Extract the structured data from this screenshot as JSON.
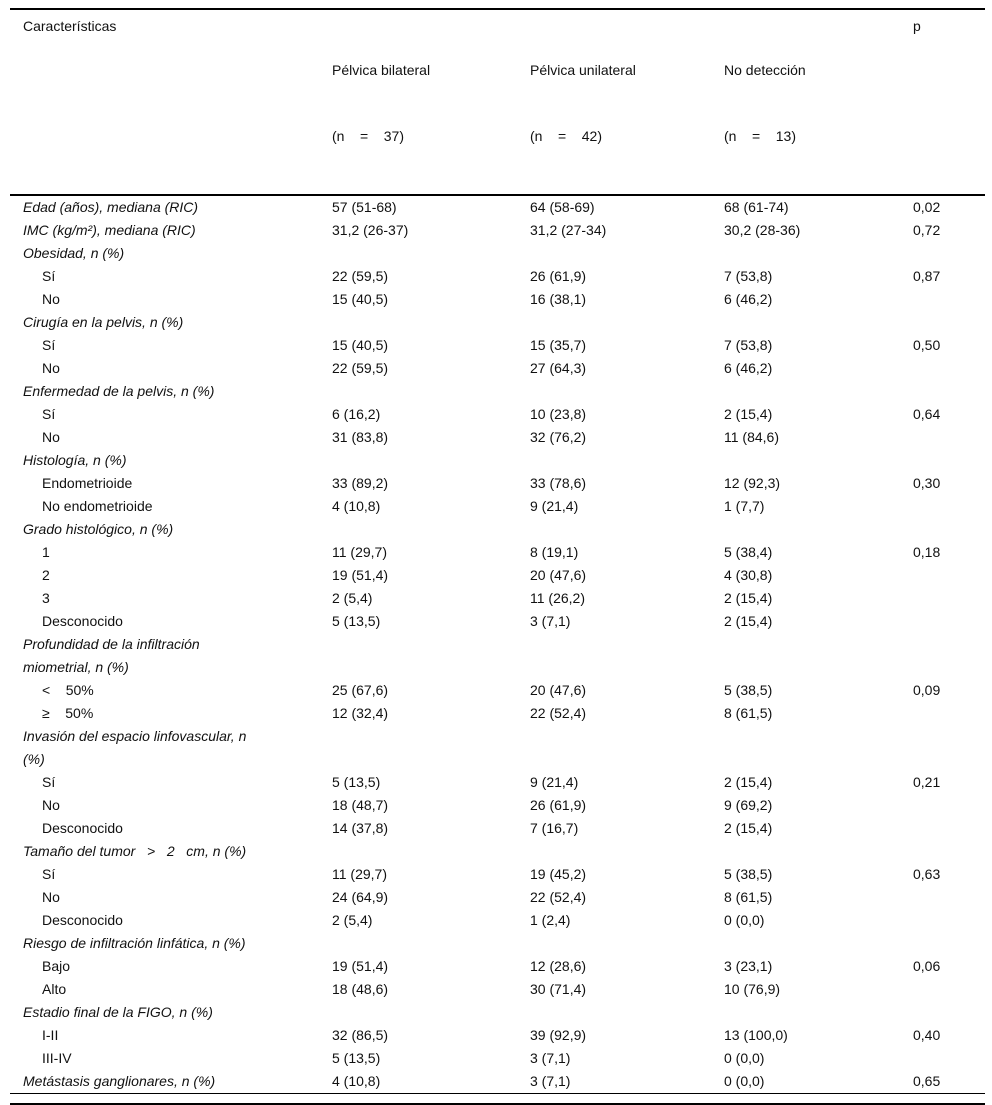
{
  "table": {
    "columns": [
      {
        "label": "Características",
        "sub": ""
      },
      {
        "label": "Pélvica bilateral",
        "sub": "(n    =    37)"
      },
      {
        "label": "Pélvica unilateral",
        "sub": "(n    =    42)"
      },
      {
        "label": "No detección",
        "sub": "(n    =    13)"
      },
      {
        "label": "p",
        "sub": ""
      }
    ],
    "rows": [
      {
        "label": "Edad (años), mediana (RIC)",
        "italic": true,
        "indent": false,
        "values": [
          "57 (51-68)",
          "64 (58-69)",
          "68 (61-74)"
        ],
        "p": "0,02"
      },
      {
        "label": "IMC (kg/m²), mediana (RIC)",
        "italic": true,
        "indent": false,
        "values": [
          "31,2 (26-37)",
          "31,2 (27-34)",
          "30,2 (28-36)"
        ],
        "p": "0,72"
      },
      {
        "label": "Obesidad, n (%)",
        "italic": true,
        "indent": false
      },
      {
        "label": "Sí",
        "italic": false,
        "indent": true,
        "values": [
          "22 (59,5)",
          "26 (61,9)",
          "7 (53,8)"
        ],
        "p": "0,87"
      },
      {
        "label": "No",
        "italic": false,
        "indent": true,
        "values": [
          "15 (40,5)",
          "16 (38,1)",
          "6 (46,2)"
        ],
        "p": ""
      },
      {
        "label": "Cirugía en la pelvis, n (%)",
        "italic": true,
        "indent": false
      },
      {
        "label": "Sí",
        "italic": false,
        "indent": true,
        "values": [
          "15 (40,5)",
          "15 (35,7)",
          "7 (53,8)"
        ],
        "p": "0,50"
      },
      {
        "label": "No",
        "italic": false,
        "indent": true,
        "values": [
          "22 (59,5)",
          "27 (64,3)",
          "6 (46,2)"
        ],
        "p": ""
      },
      {
        "label": "Enfermedad de la pelvis, n (%)",
        "italic": true,
        "indent": false
      },
      {
        "label": "Sí",
        "italic": false,
        "indent": true,
        "values": [
          "6 (16,2)",
          "10 (23,8)",
          "2 (15,4)"
        ],
        "p": "0,64"
      },
      {
        "label": "No",
        "italic": false,
        "indent": true,
        "values": [
          "31 (83,8)",
          "32 (76,2)",
          "11 (84,6)"
        ],
        "p": ""
      },
      {
        "label": "Histología, n (%)",
        "italic": true,
        "indent": false
      },
      {
        "label": "Endometrioide",
        "italic": false,
        "indent": true,
        "values": [
          "33 (89,2)",
          "33 (78,6)",
          "12 (92,3)"
        ],
        "p": "0,30"
      },
      {
        "label": "No endometrioide",
        "italic": false,
        "indent": true,
        "values": [
          "4 (10,8)",
          "9 (21,4)",
          "1 (7,7)"
        ],
        "p": ""
      },
      {
        "label": "Grado histológico, n (%)",
        "italic": true,
        "indent": false
      },
      {
        "label": "1",
        "italic": false,
        "indent": true,
        "values": [
          "11 (29,7)",
          "8 (19,1)",
          "5 (38,4)"
        ],
        "p": "0,18"
      },
      {
        "label": "2",
        "italic": false,
        "indent": true,
        "values": [
          "19 (51,4)",
          "20 (47,6)",
          "4 (30,8)"
        ],
        "p": ""
      },
      {
        "label": "3",
        "italic": false,
        "indent": true,
        "values": [
          "2 (5,4)",
          "11 (26,2)",
          "2 (15,4)"
        ],
        "p": ""
      },
      {
        "label": "Desconocido",
        "italic": false,
        "indent": true,
        "values": [
          "5 (13,5)",
          "3 (7,1)",
          "2 (15,4)"
        ],
        "p": ""
      },
      {
        "label": "Profundidad de la infiltración\nmiometrial, n (%)",
        "italic": true,
        "indent": false
      },
      {
        "label": "<    50%",
        "italic": false,
        "indent": true,
        "values": [
          "25 (67,6)",
          "20 (47,6)",
          "5 (38,5)"
        ],
        "p": "0,09"
      },
      {
        "label": "≥    50%",
        "italic": false,
        "indent": true,
        "values": [
          "12 (32,4)",
          "22 (52,4)",
          "8 (61,5)"
        ],
        "p": ""
      },
      {
        "label": "Invasión del espacio linfovascular, n\n(%)",
        "italic": true,
        "indent": false
      },
      {
        "label": "Sí",
        "italic": false,
        "indent": true,
        "values": [
          "5 (13,5)",
          "9 (21,4)",
          "2 (15,4)"
        ],
        "p": "0,21"
      },
      {
        "label": "No",
        "italic": false,
        "indent": true,
        "values": [
          "18 (48,7)",
          "26 (61,9)",
          "9 (69,2)"
        ],
        "p": ""
      },
      {
        "label": "Desconocido",
        "italic": false,
        "indent": true,
        "values": [
          "14 (37,8)",
          "7 (16,7)",
          "2 (15,4)"
        ],
        "p": ""
      },
      {
        "label": "Tamaño del tumor   >   2   cm, n (%)",
        "italic": true,
        "indent": false
      },
      {
        "label": "Sí",
        "italic": false,
        "indent": true,
        "values": [
          "11 (29,7)",
          "19 (45,2)",
          "5 (38,5)"
        ],
        "p": "0,63"
      },
      {
        "label": "No",
        "italic": false,
        "indent": true,
        "values": [
          "24 (64,9)",
          "22 (52,4)",
          "8 (61,5)"
        ],
        "p": ""
      },
      {
        "label": "Desconocido",
        "italic": false,
        "indent": true,
        "values": [
          "2 (5,4)",
          "1 (2,4)",
          "0 (0,0)"
        ],
        "p": ""
      },
      {
        "label": "Riesgo de infiltración linfática, n (%)",
        "italic": true,
        "indent": false
      },
      {
        "label": "Bajo",
        "italic": false,
        "indent": true,
        "values": [
          "19 (51,4)",
          "12 (28,6)",
          "3 (23,1)"
        ],
        "p": "0,06"
      },
      {
        "label": "Alto",
        "italic": false,
        "indent": true,
        "values": [
          "18 (48,6)",
          "30 (71,4)",
          "10 (76,9)"
        ],
        "p": ""
      },
      {
        "label": "Estadio final de la FIGO, n (%)",
        "italic": true,
        "indent": false
      },
      {
        "label": "I-II",
        "italic": false,
        "indent": true,
        "values": [
          "32 (86,5)",
          "39 (92,9)",
          "13 (100,0)"
        ],
        "p": "0,40"
      },
      {
        "label": "III-IV",
        "italic": false,
        "indent": true,
        "values": [
          "5 (13,5)",
          "3 (7,1)",
          "0 (0,0)"
        ],
        "p": ""
      },
      {
        "label": "Metástasis ganglionares, n (%)",
        "italic": true,
        "indent": false,
        "values": [
          "4 (10,8)",
          "3 (7,1)",
          "0 (0,0)"
        ],
        "p": "0,65"
      }
    ]
  }
}
